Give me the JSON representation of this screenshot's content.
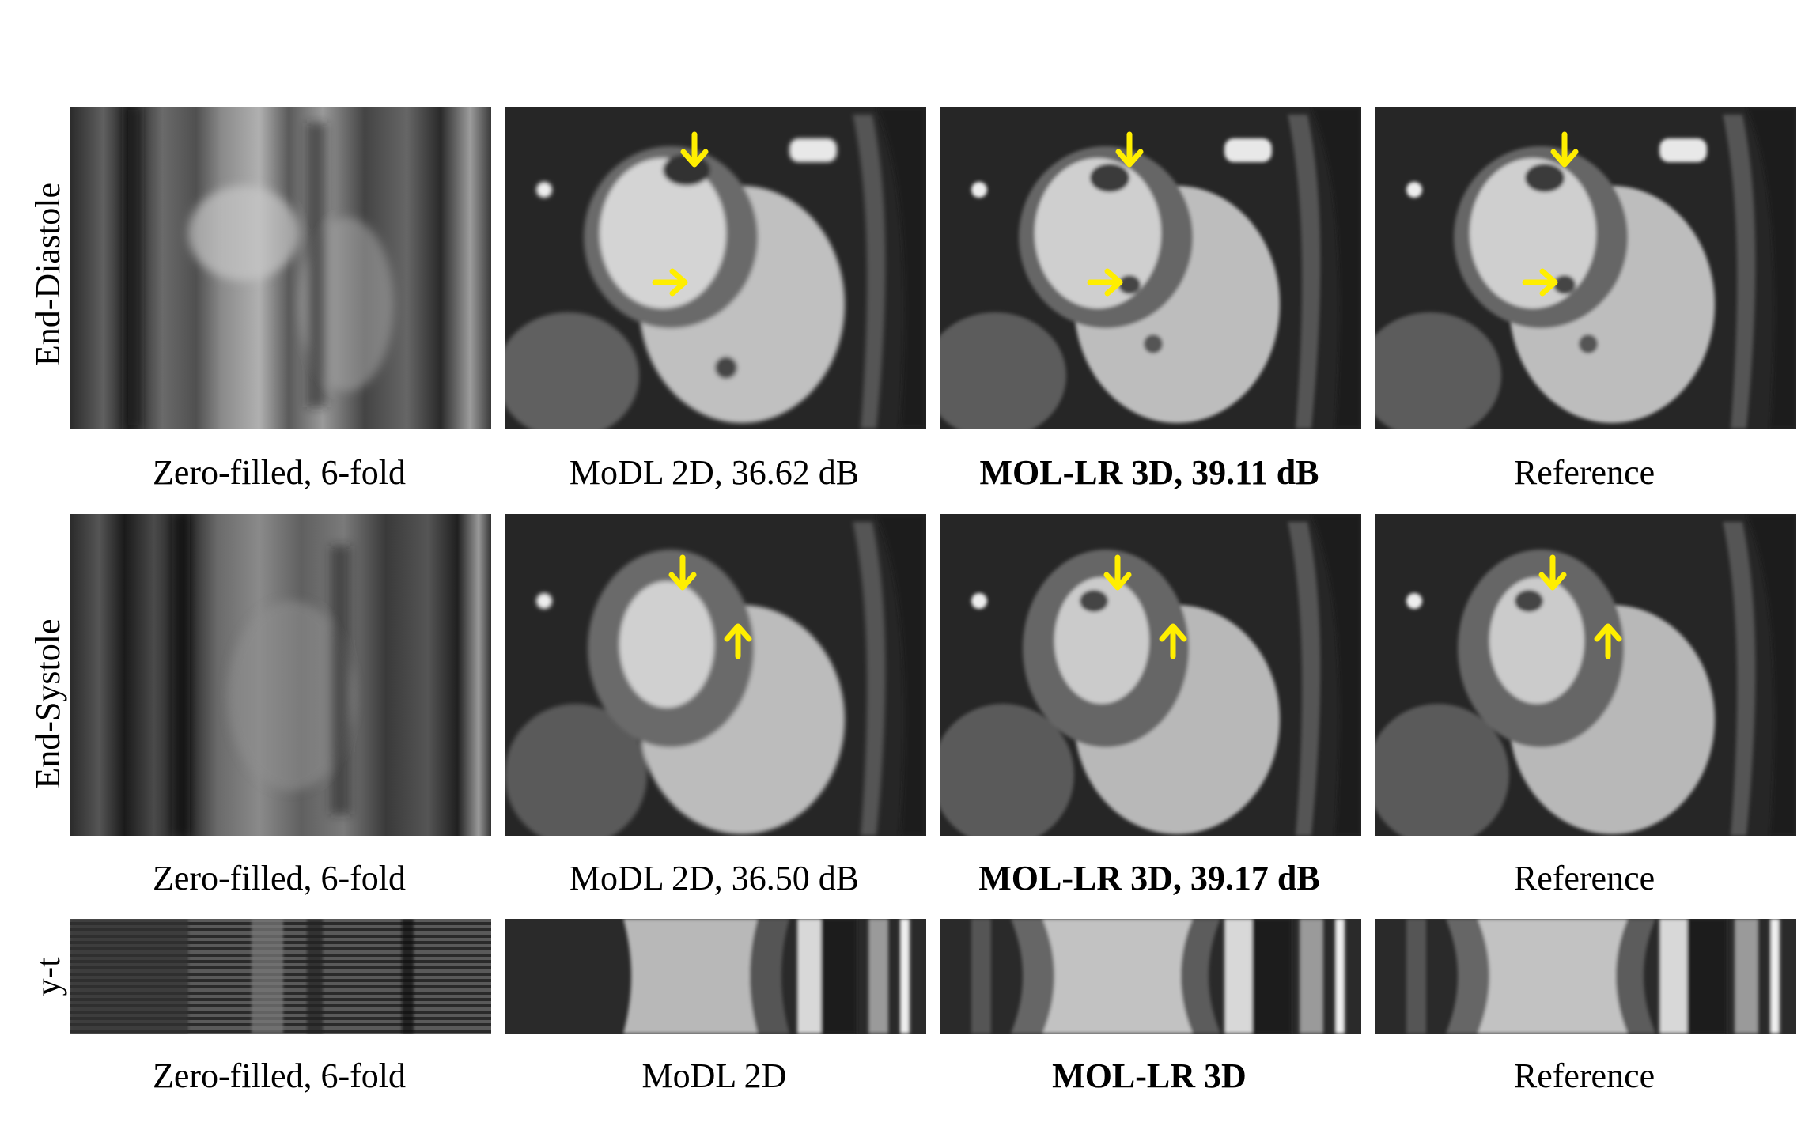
{
  "rows": [
    {
      "label": "End-Diastole",
      "panels": [
        {
          "kind": "zero-filled",
          "caption": "Zero-filled, 6-fold",
          "bold": false
        },
        {
          "kind": "modl",
          "caption": "MoDL 2D, 36.62 dB",
          "bold": false
        },
        {
          "kind": "mollr",
          "caption": "MOL-LR 3D, 39.11 dB",
          "bold": true
        },
        {
          "kind": "reference",
          "caption": "Reference",
          "bold": false
        }
      ],
      "arrows": [
        "down",
        "right"
      ]
    },
    {
      "label": "End-Systole",
      "panels": [
        {
          "kind": "zero-filled",
          "caption": "Zero-filled, 6-fold",
          "bold": false
        },
        {
          "kind": "modl",
          "caption": "MoDL 2D, 36.50 dB",
          "bold": false
        },
        {
          "kind": "mollr",
          "caption": "MOL-LR 3D, 39.17 dB",
          "bold": true
        },
        {
          "kind": "reference",
          "caption": "Reference",
          "bold": false
        }
      ],
      "arrows": [
        "down",
        "up"
      ]
    },
    {
      "label": "y-t",
      "panels": [
        {
          "kind": "zero-filled",
          "caption": "Zero-filled, 6-fold",
          "bold": false
        },
        {
          "kind": "modl",
          "caption": "MoDL 2D",
          "bold": false
        },
        {
          "kind": "mollr",
          "caption": "MOL-LR 3D",
          "bold": true
        },
        {
          "kind": "reference",
          "caption": "Reference",
          "bold": false
        }
      ],
      "arrows": []
    }
  ],
  "arrow_color": "#ffee00"
}
